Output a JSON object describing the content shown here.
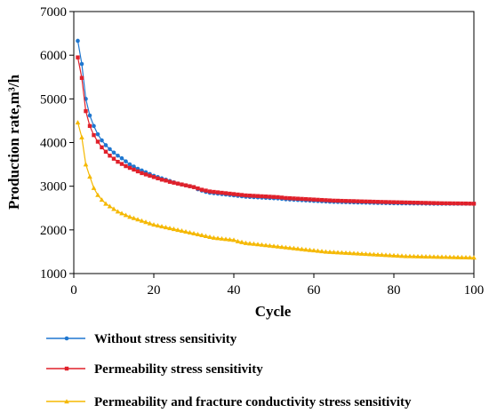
{
  "chart_data": {
    "type": "line",
    "xlabel": "Cycle",
    "ylabel": "Production rate,m³/h",
    "xlim": [
      0,
      100
    ],
    "ylim": [
      1000,
      7000
    ],
    "xticks": [
      0,
      20,
      40,
      60,
      80,
      100
    ],
    "yticks": [
      1000,
      2000,
      3000,
      4000,
      5000,
      6000,
      7000
    ],
    "grid": false,
    "legend_position": "bottom",
    "x": [
      1,
      2,
      3,
      4,
      5,
      6,
      7,
      8,
      9,
      10,
      11,
      12,
      13,
      14,
      15,
      16,
      17,
      18,
      19,
      20,
      21,
      22,
      23,
      24,
      25,
      26,
      27,
      28,
      29,
      30,
      31,
      32,
      33,
      34,
      35,
      36,
      37,
      38,
      39,
      40,
      41,
      42,
      43,
      44,
      45,
      46,
      47,
      48,
      49,
      50,
      51,
      52,
      53,
      54,
      55,
      56,
      57,
      58,
      59,
      60,
      61,
      62,
      63,
      64,
      65,
      66,
      67,
      68,
      69,
      70,
      71,
      72,
      73,
      74,
      75,
      76,
      77,
      78,
      79,
      80,
      81,
      82,
      83,
      84,
      85,
      86,
      87,
      88,
      89,
      90,
      91,
      92,
      93,
      94,
      95,
      96,
      97,
      98,
      99,
      100
    ],
    "series": [
      {
        "name": "Without stress sensitivity",
        "color": "#1f77d0",
        "marker": "circle",
        "values": [
          6330,
          5800,
          5000,
          4620,
          4380,
          4190,
          4050,
          3940,
          3850,
          3770,
          3700,
          3640,
          3570,
          3500,
          3450,
          3400,
          3360,
          3320,
          3280,
          3240,
          3210,
          3180,
          3150,
          3120,
          3090,
          3060,
          3040,
          3020,
          3000,
          2980,
          2930,
          2900,
          2870,
          2850,
          2840,
          2830,
          2820,
          2810,
          2800,
          2790,
          2780,
          2770,
          2760,
          2755,
          2750,
          2745,
          2740,
          2735,
          2730,
          2725,
          2720,
          2710,
          2700,
          2695,
          2690,
          2685,
          2680,
          2675,
          2670,
          2665,
          2660,
          2655,
          2650,
          2645,
          2642,
          2640,
          2638,
          2635,
          2632,
          2630,
          2628,
          2626,
          2624,
          2622,
          2620,
          2618,
          2616,
          2614,
          2612,
          2610,
          2609,
          2608,
          2607,
          2606,
          2605,
          2604,
          2603,
          2602,
          2601,
          2600,
          2600,
          2600,
          2600,
          2600,
          2600,
          2600,
          2600,
          2600,
          2600,
          2600
        ]
      },
      {
        "name": "Permeability stress sensitivity",
        "color": "#e0202a",
        "marker": "square",
        "values": [
          5950,
          5480,
          4720,
          4380,
          4170,
          4020,
          3890,
          3790,
          3700,
          3630,
          3560,
          3510,
          3460,
          3420,
          3380,
          3340,
          3300,
          3270,
          3240,
          3210,
          3180,
          3150,
          3130,
          3100,
          3080,
          3060,
          3040,
          3020,
          3000,
          2980,
          2950,
          2920,
          2900,
          2880,
          2870,
          2860,
          2850,
          2840,
          2830,
          2820,
          2810,
          2800,
          2790,
          2785,
          2780,
          2775,
          2770,
          2765,
          2760,
          2755,
          2750,
          2740,
          2730,
          2725,
          2720,
          2715,
          2710,
          2705,
          2700,
          2695,
          2690,
          2685,
          2680,
          2675,
          2670,
          2668,
          2665,
          2662,
          2660,
          2658,
          2655,
          2652,
          2650,
          2648,
          2645,
          2642,
          2640,
          2638,
          2636,
          2634,
          2632,
          2630,
          2628,
          2626,
          2624,
          2622,
          2620,
          2618,
          2616,
          2614,
          2612,
          2610,
          2609,
          2608,
          2607,
          2606,
          2605,
          2604,
          2602,
          2600
        ]
      },
      {
        "name": "Permeability and fracture conductivity stress sensitivity",
        "color": "#f5b800",
        "marker": "triangle",
        "values": [
          4460,
          4120,
          3500,
          3220,
          2960,
          2800,
          2690,
          2600,
          2540,
          2480,
          2420,
          2380,
          2340,
          2300,
          2270,
          2240,
          2210,
          2180,
          2150,
          2120,
          2100,
          2080,
          2060,
          2040,
          2020,
          2000,
          1980,
          1960,
          1940,
          1920,
          1900,
          1880,
          1860,
          1840,
          1820,
          1810,
          1800,
          1790,
          1780,
          1770,
          1740,
          1720,
          1700,
          1690,
          1680,
          1670,
          1660,
          1650,
          1640,
          1630,
          1620,
          1610,
          1600,
          1590,
          1580,
          1570,
          1560,
          1550,
          1540,
          1530,
          1520,
          1510,
          1500,
          1495,
          1490,
          1485,
          1480,
          1475,
          1470,
          1465,
          1460,
          1455,
          1450,
          1445,
          1440,
          1435,
          1430,
          1425,
          1420,
          1415,
          1410,
          1405,
          1400,
          1398,
          1396,
          1394,
          1392,
          1390,
          1388,
          1386,
          1384,
          1382,
          1380,
          1378,
          1376,
          1374,
          1372,
          1370,
          1368,
          1365
        ]
      }
    ]
  }
}
